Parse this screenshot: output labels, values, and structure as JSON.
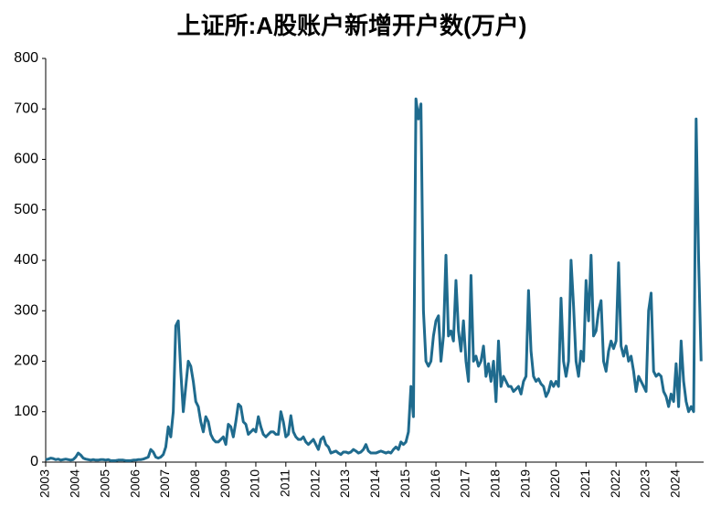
{
  "chart_data": {
    "type": "line",
    "title": "上证所:A股账户新增开户数(万户)",
    "categories": [
      "2003",
      null,
      null,
      null,
      null,
      null,
      null,
      null,
      null,
      null,
      null,
      null,
      "2004",
      null,
      null,
      null,
      null,
      null,
      null,
      null,
      null,
      null,
      null,
      null,
      "2005",
      null,
      null,
      null,
      null,
      null,
      null,
      null,
      null,
      null,
      null,
      null,
      "2006",
      null,
      null,
      null,
      null,
      null,
      null,
      null,
      null,
      null,
      null,
      null,
      "2007",
      null,
      null,
      null,
      null,
      null,
      null,
      null,
      null,
      null,
      null,
      null,
      "2008",
      null,
      null,
      null,
      null,
      null,
      null,
      null,
      null,
      null,
      null,
      null,
      "2009",
      null,
      null,
      null,
      null,
      null,
      null,
      null,
      null,
      null,
      null,
      null,
      "2010",
      null,
      null,
      null,
      null,
      null,
      null,
      null,
      null,
      null,
      null,
      null,
      "2011",
      null,
      null,
      null,
      null,
      null,
      null,
      null,
      null,
      null,
      null,
      null,
      "2012",
      null,
      null,
      null,
      null,
      null,
      null,
      null,
      null,
      null,
      null,
      null,
      "2013",
      null,
      null,
      null,
      null,
      null,
      null,
      null,
      null,
      null,
      null,
      null,
      "2014",
      null,
      null,
      null,
      null,
      null,
      null,
      null,
      null,
      null,
      null,
      null,
      "2015",
      null,
      null,
      null,
      null,
      null,
      null,
      null,
      null,
      null,
      null,
      null,
      "2016",
      null,
      null,
      null,
      null,
      null,
      null,
      null,
      null,
      null,
      null,
      null,
      "2017",
      null,
      null,
      null,
      null,
      null,
      null,
      null,
      null,
      null,
      null,
      null,
      "2018",
      null,
      null,
      null,
      null,
      null,
      null,
      null,
      null,
      null,
      null,
      null,
      "2019",
      null,
      null,
      null,
      null,
      null,
      null,
      null,
      null,
      null,
      null,
      null,
      "2020",
      null,
      null,
      null,
      null,
      null,
      null,
      null,
      null,
      null,
      null,
      null,
      "2021",
      null,
      null,
      null,
      null,
      null,
      null,
      null,
      null,
      null,
      null,
      null,
      "2022",
      null,
      null,
      null,
      null,
      null,
      null,
      null,
      null,
      null,
      null,
      null,
      "2023",
      null,
      null,
      null,
      null,
      null,
      null,
      null,
      null,
      null,
      null,
      null,
      "2024",
      null,
      null,
      null,
      null,
      null,
      null,
      null,
      null,
      null,
      null
    ],
    "series": [
      {
        "color": "#1f6b8e",
        "values": [
          5,
          6,
          8,
          7,
          5,
          6,
          4,
          5,
          6,
          5,
          4,
          5,
          10,
          18,
          14,
          8,
          6,
          5,
          4,
          5,
          4,
          4,
          5,
          5,
          4,
          5,
          3,
          3,
          3,
          4,
          4,
          4,
          3,
          3,
          3,
          4,
          4,
          5,
          5,
          6,
          8,
          10,
          25,
          20,
          10,
          8,
          10,
          15,
          30,
          70,
          50,
          100,
          270,
          280,
          180,
          100,
          150,
          200,
          190,
          160,
          120,
          110,
          80,
          60,
          90,
          80,
          55,
          45,
          40,
          40,
          45,
          50,
          35,
          75,
          70,
          50,
          80,
          115,
          110,
          80,
          75,
          55,
          60,
          65,
          60,
          90,
          70,
          55,
          50,
          55,
          60,
          60,
          55,
          55,
          100,
          80,
          50,
          55,
          92,
          60,
          50,
          45,
          45,
          50,
          40,
          35,
          40,
          45,
          35,
          25,
          45,
          50,
          35,
          30,
          18,
          20,
          22,
          18,
          15,
          20,
          20,
          18,
          20,
          25,
          22,
          18,
          20,
          25,
          35,
          22,
          18,
          18,
          18,
          20,
          22,
          20,
          18,
          20,
          18,
          25,
          30,
          25,
          40,
          35,
          40,
          60,
          150,
          90,
          720,
          680,
          710,
          300,
          200,
          190,
          200,
          250,
          280,
          290,
          200,
          250,
          410,
          250,
          260,
          240,
          360,
          260,
          220,
          280,
          200,
          160,
          370,
          200,
          210,
          190,
          200,
          230,
          170,
          195,
          160,
          200,
          120,
          240,
          150,
          170,
          160,
          150,
          150,
          140,
          145,
          150,
          135,
          160,
          170,
          340,
          220,
          170,
          160,
          165,
          155,
          150,
          130,
          140,
          160,
          150,
          160,
          150,
          325,
          200,
          170,
          200,
          400,
          310,
          200,
          170,
          220,
          200,
          360,
          280,
          410,
          250,
          260,
          300,
          320,
          200,
          180,
          220,
          240,
          225,
          240,
          395,
          230,
          210,
          230,
          200,
          210,
          180,
          140,
          170,
          160,
          150,
          140,
          300,
          335,
          180,
          170,
          175,
          170,
          140,
          130,
          110,
          135,
          120,
          195,
          110,
          240,
          160,
          120,
          100,
          110,
          100,
          680,
          400,
          200
        ]
      }
    ],
    "ylim": [
      0,
      800
    ],
    "yticks": [
      0,
      100,
      200,
      300,
      400,
      500,
      600,
      700,
      800
    ]
  }
}
